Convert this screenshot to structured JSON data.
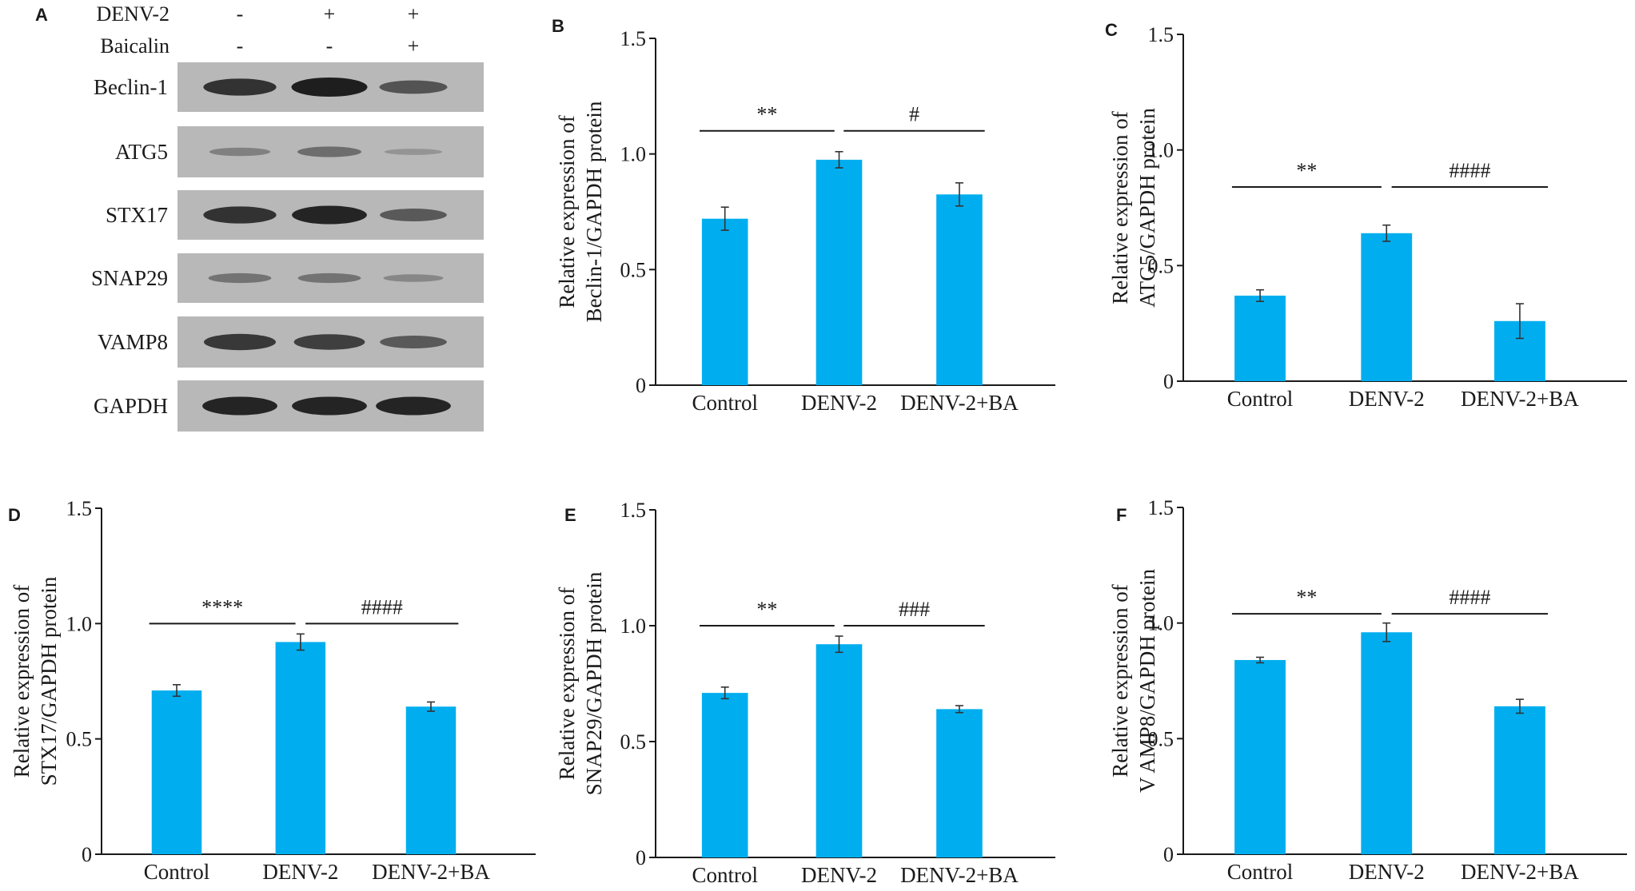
{
  "colors": {
    "bar": "#00AEEF",
    "axis": "#1a1a1a",
    "text": "#1a1a1a",
    "blot_bg": "#b8b8b8",
    "band": "#1e1e1e"
  },
  "blot": {
    "panel_label": "A",
    "treatments": [
      {
        "label": "DENV-2",
        "marks": [
          "-",
          "+",
          "+"
        ]
      },
      {
        "label": "Baicalin",
        "marks": [
          "-",
          "-",
          "+"
        ]
      }
    ],
    "rows": [
      {
        "label": "Beclin-1",
        "intensity": [
          0.85,
          1.0,
          0.6
        ]
      },
      {
        "label": "ATG5",
        "intensity": [
          0.25,
          0.4,
          0.1
        ]
      },
      {
        "label": "STX17",
        "intensity": [
          0.85,
          0.95,
          0.55
        ]
      },
      {
        "label": "SNAP29",
        "intensity": [
          0.35,
          0.35,
          0.2
        ]
      },
      {
        "label": "VAMP8",
        "intensity": [
          0.8,
          0.75,
          0.55
        ]
      },
      {
        "label": "GAPDH",
        "intensity": [
          0.95,
          0.95,
          0.95
        ]
      }
    ]
  },
  "chart_data": [
    {
      "type": "bar",
      "panel": "B",
      "categories": [
        "Control",
        "DENV-2",
        "DENV-2+BA"
      ],
      "values": [
        0.72,
        0.975,
        0.825
      ],
      "errors": [
        0.05,
        0.035,
        0.05
      ],
      "ylabel_lines": [
        "Relative expression of",
        "Beclin-1/GAPDH protein"
      ],
      "ylim": [
        0,
        1.5
      ],
      "yticks": [
        0,
        0.5,
        1.0,
        1.5
      ],
      "ytick_labels": [
        "0",
        "0.5",
        "1.0",
        "1.5"
      ],
      "significance": [
        {
          "from": 0,
          "to": 1,
          "label": "**",
          "y": 1.1
        },
        {
          "from": 1,
          "to": 2,
          "label": "#",
          "y": 1.1
        }
      ]
    },
    {
      "type": "bar",
      "panel": "C",
      "categories": [
        "Control",
        "DENV-2",
        "DENV-2+BA"
      ],
      "values": [
        0.37,
        0.64,
        0.26
      ],
      "errors": [
        0.025,
        0.035,
        0.075
      ],
      "ylabel_lines": [
        "Relative expression of",
        "ATG5/GAPDH protein"
      ],
      "ylim": [
        0,
        1.5
      ],
      "yticks": [
        0,
        0.5,
        1.0,
        1.5
      ],
      "ytick_labels": [
        "0",
        "0.5",
        "1.0",
        "1.5"
      ],
      "significance": [
        {
          "from": 0,
          "to": 1,
          "label": "**",
          "y": 0.84
        },
        {
          "from": 1,
          "to": 2,
          "label": "####",
          "y": 0.84
        }
      ]
    },
    {
      "type": "bar",
      "panel": "D",
      "categories": [
        "Control",
        "DENV-2",
        "DENV-2+BA"
      ],
      "values": [
        0.71,
        0.92,
        0.64
      ],
      "errors": [
        0.025,
        0.035,
        0.02
      ],
      "ylabel_lines": [
        "Relative expression of",
        "STX17/GAPDH protein"
      ],
      "ylim": [
        0,
        1.5
      ],
      "yticks": [
        0,
        0.5,
        1.0,
        1.5
      ],
      "ytick_labels": [
        "0",
        "0.5",
        "1.0",
        "1.5"
      ],
      "significance": [
        {
          "from": 0,
          "to": 1,
          "label": "****",
          "y": 1.0
        },
        {
          "from": 1,
          "to": 2,
          "label": "####",
          "y": 1.0
        }
      ]
    },
    {
      "type": "bar",
      "panel": "E",
      "categories": [
        "Control",
        "DENV-2",
        "DENV-2+BA"
      ],
      "values": [
        0.71,
        0.92,
        0.64
      ],
      "errors": [
        0.025,
        0.035,
        0.015
      ],
      "ylabel_lines": [
        "Relative expression of",
        "SNAP29/GAPDH protein"
      ],
      "ylim": [
        0,
        1.5
      ],
      "yticks": [
        0,
        0.5,
        1.0,
        1.5
      ],
      "ytick_labels": [
        "0",
        "0.5",
        "1.0",
        "1.5"
      ],
      "significance": [
        {
          "from": 0,
          "to": 1,
          "label": "**",
          "y": 1.0
        },
        {
          "from": 1,
          "to": 2,
          "label": "###",
          "y": 1.0
        }
      ]
    },
    {
      "type": "bar",
      "panel": "F",
      "categories": [
        "Control",
        "DENV-2",
        "DENV-2+BA"
      ],
      "values": [
        0.84,
        0.96,
        0.64
      ],
      "errors": [
        0.012,
        0.04,
        0.03
      ],
      "ylabel_lines": [
        "Relative expression of",
        "V AMP8/GAPDH protein"
      ],
      "ylim": [
        0,
        1.5
      ],
      "yticks": [
        0,
        0.5,
        1.0,
        1.5
      ],
      "ytick_labels": [
        "0",
        "0.5",
        "1.0",
        "1.5"
      ],
      "significance": [
        {
          "from": 0,
          "to": 1,
          "label": "**",
          "y": 1.04
        },
        {
          "from": 1,
          "to": 2,
          "label": "####",
          "y": 1.04
        }
      ]
    }
  ]
}
